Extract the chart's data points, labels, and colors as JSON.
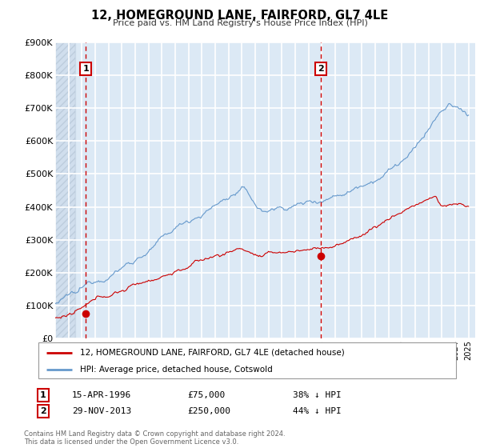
{
  "title": "12, HOMEGROUND LANE, FAIRFORD, GL7 4LE",
  "subtitle": "Price paid vs. HM Land Registry's House Price Index (HPI)",
  "ylim": [
    0,
    900000
  ],
  "xlim_start": 1994.0,
  "xlim_end": 2025.5,
  "ytick_labels": [
    "£0",
    "£100K",
    "£200K",
    "£300K",
    "£400K",
    "£500K",
    "£600K",
    "£700K",
    "£800K",
    "£900K"
  ],
  "ytick_values": [
    0,
    100000,
    200000,
    300000,
    400000,
    500000,
    600000,
    700000,
    800000,
    900000
  ],
  "sale1_date": 1996.29,
  "sale1_price": 75000,
  "sale1_label": "1",
  "sale1_text": "15-APR-1996",
  "sale1_amount": "£75,000",
  "sale1_pct": "38% ↓ HPI",
  "sale2_date": 2013.92,
  "sale2_price": 250000,
  "sale2_label": "2",
  "sale2_text": "29-NOV-2013",
  "sale2_amount": "£250,000",
  "sale2_pct": "44% ↓ HPI",
  "legend_line1": "12, HOMEGROUND LANE, FAIRFORD, GL7 4LE (detached house)",
  "legend_line2": "HPI: Average price, detached house, Cotswold",
  "footer1": "Contains HM Land Registry data © Crown copyright and database right 2024.",
  "footer2": "This data is licensed under the Open Government Licence v3.0.",
  "red_color": "#cc0000",
  "blue_color": "#6699cc",
  "bg_color": "#ffffff",
  "plot_bg_color": "#dce9f5",
  "grid_color": "#ffffff",
  "hatch_region_end": 1995.5
}
